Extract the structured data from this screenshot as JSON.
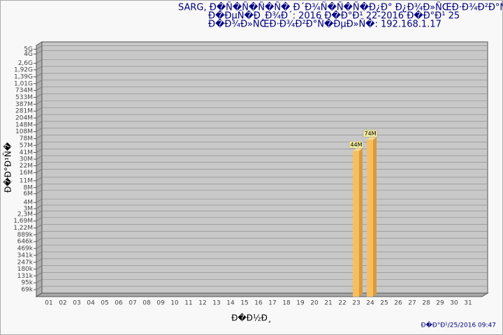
{
  "chart_data": {
    "type": "bar",
    "title": [
      "SARG,  Đ�Ñ�Ñ�Ñ�Ñ� Đ´Đ¾Ñ�Ñ�Ñ�Đ¿Đ° Đ¿Đ¾Đ»ÑŒĐ·Đ¾Đ²Đ°Ñ�ĐµĐ»",
      "Đ�ĐµÑ�Đ¸Đ¾Đ´: 2016 Đ�Đ°Đ¹ 22-2016 Đ�Đ°Đ¹ 25",
      "Đ�Đ¾Đ»ÑŒĐ·Đ¾Đ²Đ°Ñ�ĐµĐ»Ñ�: 192.168.1.17"
    ],
    "y_label": "Đ�Đ°Đ¹Ñ�",
    "x_label": "Đ�Đ½Đ¸",
    "footer": "Đ�Đ°Đ¹/25/2016 09:47",
    "categories": [
      "01",
      "02",
      "03",
      "04",
      "05",
      "06",
      "07",
      "08",
      "09",
      "10",
      "11",
      "12",
      "13",
      "14",
      "15",
      "16",
      "17",
      "18",
      "19",
      "20",
      "21",
      "22",
      "23",
      "24",
      "25",
      "26",
      "27",
      "28",
      "29",
      "30",
      "31"
    ],
    "values": [
      null,
      null,
      null,
      null,
      null,
      null,
      null,
      null,
      null,
      null,
      null,
      null,
      null,
      null,
      null,
      null,
      null,
      null,
      null,
      null,
      null,
      null,
      44000000,
      74000000,
      null,
      null,
      null,
      null,
      null,
      null,
      null
    ],
    "value_labels": [
      null,
      null,
      null,
      null,
      null,
      null,
      null,
      null,
      null,
      null,
      null,
      null,
      null,
      null,
      null,
      null,
      null,
      null,
      null,
      null,
      null,
      null,
      "44M",
      "74M",
      null,
      null,
      null,
      null,
      null,
      null,
      null
    ],
    "color": "#f7be5e",
    "log_scale": true,
    "ylim": [
      50000,
      6000000000
    ],
    "yticks": [
      {
        "value": 69000,
        "label": "69k"
      },
      {
        "value": 95000,
        "label": "95k"
      },
      {
        "value": 131000,
        "label": "131k"
      },
      {
        "value": 180000,
        "label": "180k"
      },
      {
        "value": 247000,
        "label": "247k"
      },
      {
        "value": 341000,
        "label": "341k"
      },
      {
        "value": 469000,
        "label": "469k"
      },
      {
        "value": 646000,
        "label": "646k"
      },
      {
        "value": 889000,
        "label": "889k"
      },
      {
        "value": 1220000,
        "label": "1,22M"
      },
      {
        "value": 1690000,
        "label": "1,69M"
      },
      {
        "value": 2300000,
        "label": "2,3M"
      },
      {
        "value": 3000000,
        "label": "3M"
      },
      {
        "value": 4000000,
        "label": "4M"
      },
      {
        "value": 6000000,
        "label": "6M"
      },
      {
        "value": 8000000,
        "label": "8M"
      },
      {
        "value": 11000000,
        "label": "11M"
      },
      {
        "value": 16000000,
        "label": "16M"
      },
      {
        "value": 22000000,
        "label": "22M"
      },
      {
        "value": 30000000,
        "label": "30M"
      },
      {
        "value": 41000000,
        "label": "41M"
      },
      {
        "value": 57000000,
        "label": "57M"
      },
      {
        "value": 78000000,
        "label": "78M"
      },
      {
        "value": 108000000,
        "label": "108M"
      },
      {
        "value": 148000000,
        "label": "148M"
      },
      {
        "value": 204000000,
        "label": "204M"
      },
      {
        "value": 281000000,
        "label": "281M"
      },
      {
        "value": 387000000,
        "label": "387M"
      },
      {
        "value": 533000000,
        "label": "533M"
      },
      {
        "value": 734000000,
        "label": "734M"
      },
      {
        "value": 1010000000,
        "label": "1,01G"
      },
      {
        "value": 1390000000,
        "label": "1,39G"
      },
      {
        "value": 1920000000,
        "label": "1,92G"
      },
      {
        "value": 2600000000,
        "label": "2,6G"
      },
      {
        "value": 4000000000,
        "label": "4G"
      },
      {
        "value": 5000000000,
        "label": "5G"
      }
    ],
    "grid": true
  }
}
